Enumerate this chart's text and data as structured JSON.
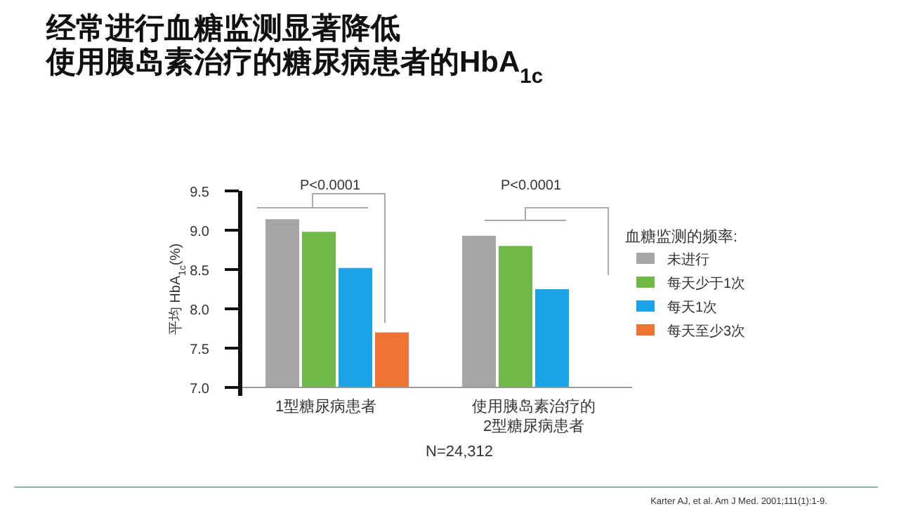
{
  "chart_data": {
    "type": "bar",
    "title": "经常进行血糖监测显著降低",
    "subtitle": "使用胰岛素治疗的糖尿病患者的HbA$_{1c}$",
    "ylabel": "平均 HbA$_{1c}$(%)",
    "legend_title": "血糖监测的频率:",
    "categories": [
      "1型糖尿病患者",
      "使用胰岛素治疗的\n2型糖尿病患者"
    ],
    "series": [
      {
        "name": "未进行",
        "color": "#a6a6a6",
        "values": [
          9.14,
          8.93
        ]
      },
      {
        "name": "每天少于1次",
        "color": "#70b847",
        "values": [
          8.98,
          8.8
        ]
      },
      {
        "name": "每天1次",
        "color": "#1aa3e8",
        "values": [
          8.52,
          8.25
        ]
      },
      {
        "name": "每天至少3次",
        "color": "#ed7433",
        "values": [
          7.7,
          null
        ]
      }
    ],
    "ylim": [
      7.0,
      9.5
    ],
    "yticks": [
      {
        "value": 7.0,
        "label": "7.0"
      },
      {
        "value": 7.5,
        "label": "7.5"
      },
      {
        "value": 8.0,
        "label": "8.0"
      },
      {
        "value": 8.5,
        "label": "8.5"
      },
      {
        "value": 9.0,
        "label": "9.0"
      },
      {
        "value": 9.5,
        "label": "9.5"
      }
    ],
    "grid": false,
    "legend": "right",
    "annotations": [
      "P<0.0001",
      "P<0.0001",
      "N=24,312",
      "Karter AJ, et al. Am J Med. 2001;111(1):1-9."
    ]
  }
}
